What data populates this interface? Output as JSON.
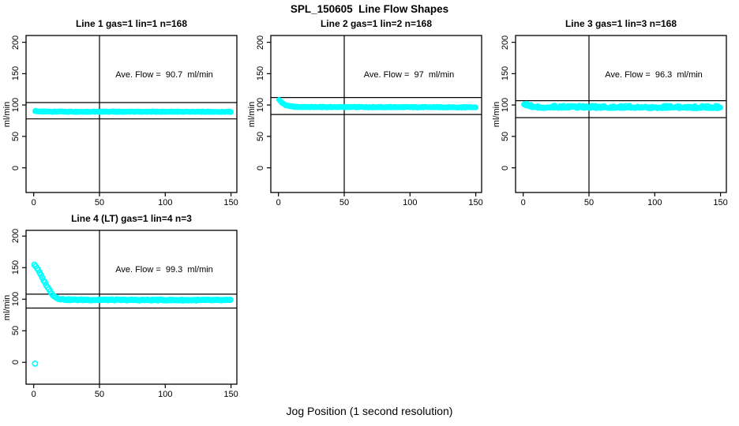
{
  "page": {
    "main_title": "SPL_150605  Line Flow Shapes",
    "x_axis_label": "Jog Position (1 second resolution)"
  },
  "chart_data": {
    "type": "scatter",
    "layout_note": "2x3 panel grid, 4 panels used; shared axis style",
    "title": "SPL_150605  Line Flow Shapes",
    "xlabel": "Jog Position (1 second resolution)",
    "ylabel": "ml/min",
    "x_ticks": [
      0,
      50,
      100,
      150
    ],
    "y_ticks": [
      0,
      50,
      100,
      150,
      200
    ],
    "xlim": [
      -6,
      154
    ],
    "ylim": [
      -39,
      211
    ],
    "grid": false,
    "vline_x": 50,
    "marker": {
      "shape": "open-circle",
      "color": "#00FFFF"
    },
    "axis_color": "#000000",
    "background": "#FFFFFF",
    "subplots": [
      {
        "title": "Line 1 gas=1 lin=1 n=168",
        "annotation": "Ave. Flow =  90.7  ml/min",
        "ave_flow_ml_min": 90.7,
        "n": 168,
        "ref_lines": {
          "upper": 104,
          "lower": 78
        },
        "series_profile": [
          [
            1,
            90.8
          ],
          [
            3,
            90
          ],
          [
            6,
            89.5
          ],
          [
            150,
            89.2
          ]
        ],
        "x_start": 1,
        "x_end": 150,
        "x_step": 0.5,
        "jitter": 0.7,
        "r": 2.6,
        "extra_points": []
      },
      {
        "title": "Line 2 gas=1 lin=2 n=168",
        "annotation": "Ave. Flow =  97  ml/min",
        "ave_flow_ml_min": 97,
        "n": 168,
        "ref_lines": {
          "upper": 112,
          "lower": 85
        },
        "series_profile": [
          [
            0.5,
            109
          ],
          [
            1,
            107
          ],
          [
            2,
            105
          ],
          [
            3,
            103
          ],
          [
            4,
            101.5
          ],
          [
            6,
            99.5
          ],
          [
            9,
            98
          ],
          [
            13,
            97
          ],
          [
            20,
            96.8
          ],
          [
            150,
            96.5
          ]
        ],
        "x_start": 0.5,
        "x_end": 150,
        "x_step": 0.5,
        "jitter": 0.8,
        "r": 2.6,
        "extra_points": []
      },
      {
        "title": "Line 3 gas=1 lin=3 n=168",
        "annotation": "Ave. Flow =  96.3  ml/min",
        "ave_flow_ml_min": 96.3,
        "n": 168,
        "ref_lines": {
          "upper": 107,
          "lower": 80
        },
        "series_profile": [
          [
            0.5,
            102
          ],
          [
            1,
            100.5
          ],
          [
            2,
            99.5
          ],
          [
            4,
            98
          ],
          [
            7,
            96.8
          ],
          [
            12,
            96
          ],
          [
            150,
            95.5
          ]
        ],
        "x_start": 0.5,
        "x_end": 150,
        "x_step": 0.5,
        "jitter": 1.1,
        "r": 2.6,
        "spike": [
          0.28,
          2.3
        ],
        "extra_points": []
      },
      {
        "title": "Line 4 (LT) gas=1 lin=4 n=3",
        "annotation": "Ave. Flow =  99.3  ml/min",
        "ave_flow_ml_min": 99.3,
        "n": 3,
        "ref_lines": {
          "upper": 108,
          "lower": 86
        },
        "series_profile": [
          [
            0.5,
            155
          ],
          [
            2,
            151
          ],
          [
            4,
            144
          ],
          [
            6,
            136
          ],
          [
            8,
            128
          ],
          [
            10,
            121
          ],
          [
            12,
            114
          ],
          [
            14,
            108
          ],
          [
            16,
            104
          ],
          [
            18,
            101.5
          ],
          [
            21,
            100
          ],
          [
            25,
            99.3
          ],
          [
            40,
            99
          ],
          [
            150,
            98.5
          ]
        ],
        "x_start": 0.5,
        "x_end": 150,
        "x_step": 1,
        "jitter": 0.7,
        "r": 3.1,
        "extra_points": [
          [
            1,
            -2
          ]
        ]
      }
    ]
  }
}
